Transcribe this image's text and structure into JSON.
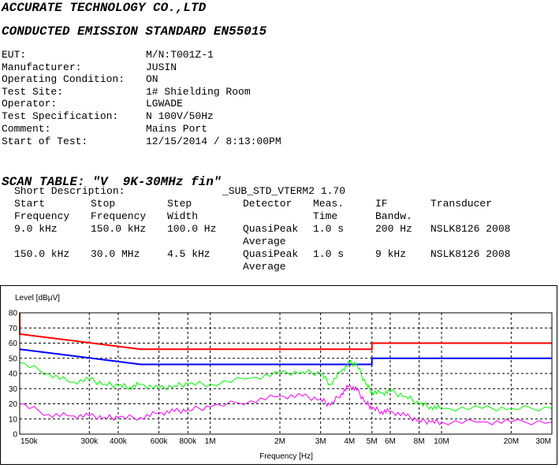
{
  "header": {
    "company": "ACCURATE TECHNOLOGY CO.,LTD",
    "standard": "CONDUCTED EMISSION STANDARD EN55015"
  },
  "info": [
    {
      "label": "EUT:",
      "value": "M/N:T001Z-1"
    },
    {
      "label": "Manufacturer:",
      "value": "JUSIN"
    },
    {
      "label": "Operating Condition:",
      "value": "ON"
    },
    {
      "label": "Test Site:",
      "value": "1# Shielding Room"
    },
    {
      "label": "Operator:",
      "value": "LGWADE"
    },
    {
      "label": "Test Specification:",
      "value": "N 100V/50Hz"
    },
    {
      "label": "Comment:",
      "value": "Mains Port"
    },
    {
      "label": "Start of Test:",
      "value": "12/15/2014 / 8:13:00PM"
    }
  ],
  "scan": {
    "title": "SCAN TABLE: \"V  9K-30MHz fin\"",
    "short_desc_label": "Short Description:",
    "short_desc_value": "_SUB_STD_VTERM2 1.70",
    "columns": {
      "start1": "Start",
      "start2": "Frequency",
      "stop1": "Stop",
      "stop2": "Frequency",
      "step1": "Step",
      "step2": "Width",
      "detector": "Detector",
      "meas1": "Meas.",
      "meas2": "Time",
      "if1": "IF",
      "if2": "Bandw.",
      "transducer": "Transducer"
    },
    "rows": [
      {
        "start": "9.0 kHz",
        "stop": "150.0 kHz",
        "step": "100.0 Hz",
        "det1": "QuasiPeak",
        "det2": "Average",
        "time": "1.0 s",
        "ifbw": "200 Hz",
        "transducer": "NSLK8126 2008"
      },
      {
        "start": "150.0 kHz",
        "stop": "30.0 MHz",
        "step": "4.5 kHz",
        "det1": "QuasiPeak",
        "det2": "Average",
        "time": "1.0 s",
        "ifbw": "9 kHz",
        "transducer": "NSLK8126 2008"
      }
    ]
  },
  "chart_data": {
    "type": "line",
    "ylabel": "Level [dBµV]",
    "xlabel": "Frequency [Hz]",
    "xscale": "log",
    "xlim": [
      0.15,
      30
    ],
    "ylim": [
      0,
      80
    ],
    "yticks": [
      0,
      10,
      20,
      30,
      40,
      50,
      60,
      70,
      80
    ],
    "xticks": [
      {
        "v": 0.15,
        "label": "150k"
      },
      {
        "v": 0.3,
        "label": "300k"
      },
      {
        "v": 0.4,
        "label": "400k"
      },
      {
        "v": 0.6,
        "label": "600k"
      },
      {
        "v": 0.8,
        "label": "800k"
      },
      {
        "v": 1,
        "label": "1M"
      },
      {
        "v": 2,
        "label": "2M"
      },
      {
        "v": 3,
        "label": "3M"
      },
      {
        "v": 4,
        "label": "4M"
      },
      {
        "v": 5,
        "label": "5M"
      },
      {
        "v": 6,
        "label": "6M"
      },
      {
        "v": 8,
        "label": "8M"
      },
      {
        "v": 10,
        "label": "10M"
      },
      {
        "v": 20,
        "label": "20M"
      },
      {
        "v": 30,
        "label": "30M"
      }
    ],
    "grid": true,
    "series": [
      {
        "color": "#ff0000",
        "x": [
          0.15,
          0.15,
          0.5,
          5,
          5,
          30
        ],
        "y": [
          80,
          66,
          56,
          56,
          60,
          60
        ]
      },
      {
        "color": "#0000ff",
        "x": [
          0.15,
          0.5,
          5,
          5,
          30
        ],
        "y": [
          56,
          46,
          46,
          50,
          50
        ]
      },
      {
        "color": "#00ff00",
        "x": [
          0.15,
          0.2,
          0.25,
          0.3,
          0.35,
          0.4,
          0.45,
          0.5,
          0.6,
          0.7,
          0.8,
          1,
          1.5,
          2,
          2.5,
          3,
          3.3,
          3.7,
          4,
          4.3,
          4.7,
          5,
          5.5,
          6,
          7,
          8,
          9,
          10,
          15,
          20,
          30
        ],
        "y": [
          47,
          40,
          34,
          36,
          33,
          32,
          31,
          33,
          30,
          32,
          33,
          33,
          37,
          40,
          41,
          40,
          33,
          42,
          47,
          46,
          33,
          28,
          27,
          28,
          25,
          20,
          18,
          17,
          17,
          17,
          17
        ]
      },
      {
        "color": "#ff00ff",
        "x": [
          0.15,
          0.2,
          0.25,
          0.3,
          0.35,
          0.4,
          0.5,
          0.6,
          0.7,
          0.8,
          1,
          1.5,
          2,
          2.5,
          3,
          3.3,
          3.7,
          4,
          4.3,
          4.7,
          5,
          5.5,
          6,
          7,
          8,
          9,
          10,
          15,
          20,
          30
        ],
        "y": [
          20,
          13,
          12,
          12,
          11,
          11,
          11,
          14,
          15,
          16,
          18,
          22,
          25,
          25,
          23,
          19,
          27,
          32,
          29,
          21,
          17,
          15,
          15,
          12,
          9,
          8,
          8,
          8,
          8,
          8
        ]
      }
    ]
  }
}
